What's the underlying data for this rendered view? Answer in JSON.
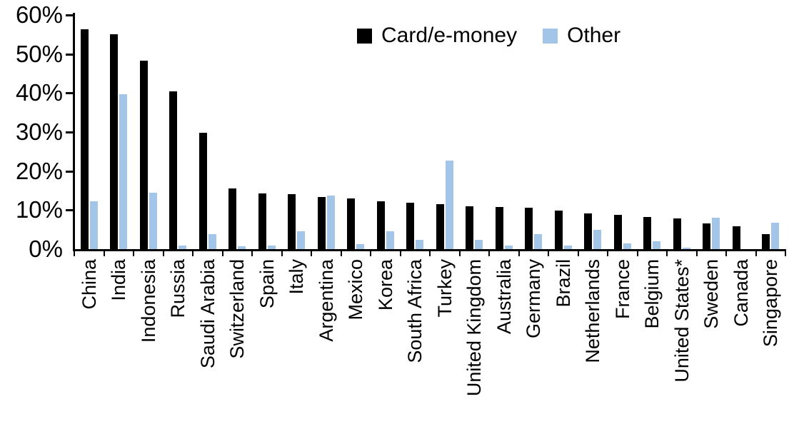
{
  "chart_data": {
    "type": "bar",
    "title": "",
    "xlabel": "",
    "ylabel": "",
    "categories": [
      "China",
      "India",
      "Indonesia",
      "Russia",
      "Saudi Arabia",
      "Switzerland",
      "Spain",
      "Italy",
      "Argentina",
      "Mexico",
      "Korea",
      "South Africa",
      "Turkey",
      "United Kingdom",
      "Australia",
      "Germany",
      "Brazil",
      "Netherlands",
      "France",
      "Belgium",
      "United States*",
      "Sweden",
      "Canada",
      "Singapore"
    ],
    "series": [
      {
        "name": "Card/e-money",
        "color": "#000000",
        "values": [
          56.3,
          55.1,
          48.3,
          40.4,
          29.8,
          15.6,
          14.2,
          14.1,
          13.4,
          12.9,
          12.2,
          11.8,
          11.6,
          11.0,
          10.8,
          10.6,
          9.9,
          9.2,
          8.7,
          8.2,
          7.9,
          6.5,
          5.9,
          3.9
        ]
      },
      {
        "name": "Other",
        "color": "#A3C6E8",
        "values": [
          12.3,
          39.7,
          14.5,
          1.0,
          3.9,
          0.8,
          1.0,
          4.6,
          13.8,
          1.3,
          4.6,
          2.4,
          22.6,
          2.4,
          1.0,
          3.8,
          1.0,
          4.9,
          1.5,
          2.0,
          0.3,
          8.1,
          0.0,
          6.7
        ]
      }
    ],
    "ylim": [
      0,
      60
    ],
    "ytick_step": 10,
    "ytick_labels": [
      "0%",
      "10%",
      "20%",
      "30%",
      "40%",
      "50%",
      "60%"
    ],
    "grid": false,
    "legend_position": "top-center",
    "axis_color": "#000000"
  }
}
